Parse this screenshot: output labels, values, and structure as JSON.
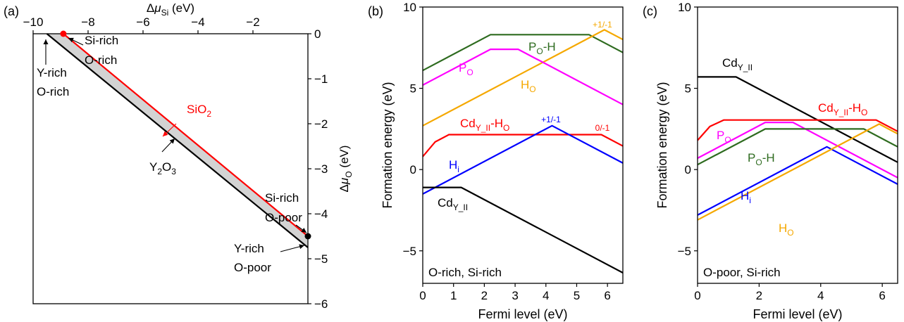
{
  "colors": {
    "text": "#000000",
    "red": "#ff0000",
    "blue": "#0000ff",
    "black": "#000000",
    "green": "#2e6b1f",
    "magenta": "#ff00ff",
    "orange": "#f5a800",
    "gray_fill": "#d3d3d3"
  },
  "chart_data": [
    {
      "id": "a",
      "panel_label": "(a)",
      "type": "line",
      "xlabel": "Δμ_Si (eV)",
      "ylabel": "Δμ_O (eV)",
      "xlim": [
        -10,
        0
      ],
      "ylim": [
        -6,
        0
      ],
      "xticks": [
        -10,
        -8,
        -6,
        -4,
        -2
      ],
      "yticks": [
        0,
        -1,
        -2,
        -3,
        -4,
        -5,
        -6
      ],
      "xtick_labels": [
        "−10",
        "−8",
        "−6",
        "−4",
        "−2"
      ],
      "ytick_labels": [
        "0",
        "−1",
        "−2",
        "−3",
        "−4",
        "−5",
        "−6"
      ],
      "axis_positions": {
        "x": "top",
        "y": "right"
      },
      "series": [
        {
          "name": "SiO2",
          "color": "red",
          "points": [
            [
              -8.9,
              0
            ],
            [
              0,
              -4.5
            ]
          ]
        },
        {
          "name": "Y2O3",
          "color": "black",
          "points": [
            [
              -9.5,
              0
            ],
            [
              0,
              -4.75
            ]
          ]
        }
      ],
      "shaded_region": [
        [
          -9.5,
          0
        ],
        [
          -8.9,
          0
        ],
        [
          0,
          -4.5
        ],
        [
          0,
          -4.75
        ]
      ],
      "markers": [
        {
          "x": -8.9,
          "y": 0,
          "color": "red"
        },
        {
          "x": 0,
          "y": -4.5,
          "color": "black"
        }
      ],
      "annotations": [
        {
          "lines": [
            "Si-rich",
            "O-rich"
          ]
        },
        {
          "lines": [
            "Y-rich",
            "O-rich"
          ]
        },
        {
          "lines": [
            "Si-rich",
            "O-poor"
          ]
        },
        {
          "lines": [
            "Y-rich",
            "O-poor"
          ]
        },
        {
          "label": "SiO₂",
          "color": "red"
        },
        {
          "label": "Y₂O₃",
          "color": "black"
        }
      ]
    },
    {
      "id": "b",
      "panel_label": "(b)",
      "type": "line",
      "xlabel": "Fermi level (eV)",
      "ylabel": "Formation energy (eV)",
      "xlim": [
        0,
        6.5
      ],
      "ylim": [
        -7,
        10
      ],
      "xticks": [
        0,
        1,
        2,
        3,
        4,
        5,
        6
      ],
      "yticks": [
        -5,
        0,
        5,
        10
      ],
      "xtick_labels": [
        "0",
        "1",
        "2",
        "3",
        "4",
        "5",
        "6"
      ],
      "ytick_labels": [
        "−5",
        "0",
        "5",
        "10"
      ],
      "corner_text": "O-rich, Si-rich",
      "series": [
        {
          "name": "P_O-H",
          "color": "green",
          "points": [
            [
              0,
              6.1
            ],
            [
              2.2,
              8.3
            ],
            [
              5.4,
              8.3
            ],
            [
              6.5,
              7.2
            ]
          ]
        },
        {
          "name": "H_O",
          "color": "orange",
          "points": [
            [
              0,
              2.7
            ],
            [
              5.9,
              8.6
            ],
            [
              6.5,
              8.0
            ]
          ]
        },
        {
          "name": "P_O",
          "color": "magenta",
          "points": [
            [
              0,
              5.2
            ],
            [
              2.2,
              7.4
            ],
            [
              3.1,
              7.4
            ],
            [
              6.5,
              4.0
            ]
          ]
        },
        {
          "name": "Cd_Y_II-H_O",
          "color": "red",
          "points": [
            [
              0,
              0.8
            ],
            [
              0.4,
              1.7
            ],
            [
              0.85,
              2.15
            ],
            [
              5.8,
              2.15
            ],
            [
              6.5,
              1.45
            ]
          ]
        },
        {
          "name": "H_i",
          "color": "blue",
          "points": [
            [
              0,
              -1.5
            ],
            [
              4.2,
              2.7
            ],
            [
              6.5,
              0.4
            ]
          ]
        },
        {
          "name": "Cd_Y_II",
          "color": "black",
          "points": [
            [
              0,
              -1.1
            ],
            [
              1.25,
              -1.1
            ],
            [
              6.5,
              -6.35
            ]
          ]
        }
      ],
      "series_labels": [
        {
          "base": "P",
          "sub": "O",
          "suffix": "-H",
          "color": "green"
        },
        {
          "base": "H",
          "sub": "O",
          "suffix": "",
          "color": "orange"
        },
        {
          "base": "P",
          "sub": "O",
          "suffix": "",
          "color": "magenta"
        },
        {
          "base": "Cd",
          "sub": "Y_II",
          "suffix": "-H",
          "sub2": "O",
          "color": "red"
        },
        {
          "base": "H",
          "sub": "i",
          "suffix": "",
          "color": "blue"
        },
        {
          "base": "Cd",
          "sub": "Y_II",
          "suffix": "",
          "color": "black"
        }
      ],
      "transition_labels": [
        {
          "text": "+1/-1",
          "color": "orange"
        },
        {
          "text": "+1/-1",
          "color": "blue"
        },
        {
          "text": "0/-1",
          "color": "red"
        }
      ]
    },
    {
      "id": "c",
      "panel_label": "(c)",
      "type": "line",
      "xlabel": "Fermi level (eV)",
      "ylabel": "Formation energy (eV)",
      "xlim": [
        0,
        6.5
      ],
      "ylim": [
        -7,
        10
      ],
      "xticks": [
        0,
        2,
        4,
        6
      ],
      "yticks": [
        -5,
        0,
        5,
        10
      ],
      "xtick_labels": [
        "0",
        "2",
        "4",
        "6"
      ],
      "ytick_labels": [
        "−5",
        "0",
        "5",
        "10"
      ],
      "corner_text": "O-poor, Si-rich",
      "series": [
        {
          "name": "Cd_Y_II",
          "color": "black",
          "points": [
            [
              0,
              5.7
            ],
            [
              1.25,
              5.7
            ],
            [
              6.5,
              0.45
            ]
          ]
        },
        {
          "name": "Cd_Y_II-H_O",
          "color": "red",
          "points": [
            [
              0,
              1.8
            ],
            [
              0.4,
              2.65
            ],
            [
              0.85,
              3.05
            ],
            [
              5.8,
              3.05
            ],
            [
              6.5,
              2.35
            ]
          ]
        },
        {
          "name": "P_O",
          "color": "magenta",
          "points": [
            [
              0,
              0.7
            ],
            [
              2.2,
              2.9
            ],
            [
              3.1,
              2.9
            ],
            [
              6.5,
              -0.5
            ]
          ]
        },
        {
          "name": "P_O-H",
          "color": "green",
          "points": [
            [
              0,
              0.3
            ],
            [
              2.2,
              2.5
            ],
            [
              5.4,
              2.5
            ],
            [
              6.5,
              1.4
            ]
          ]
        },
        {
          "name": "H_i",
          "color": "blue",
          "points": [
            [
              0,
              -2.8
            ],
            [
              4.2,
              1.4
            ],
            [
              6.5,
              -0.9
            ]
          ]
        },
        {
          "name": "H_O",
          "color": "orange",
          "points": [
            [
              0,
              -3.1
            ],
            [
              5.9,
              2.8
            ],
            [
              6.5,
              2.2
            ]
          ]
        }
      ],
      "series_labels": [
        {
          "base": "Cd",
          "sub": "Y_II",
          "suffix": "",
          "color": "black"
        },
        {
          "base": "Cd",
          "sub": "Y_II",
          "suffix": "-H",
          "sub2": "O",
          "color": "red"
        },
        {
          "base": "P",
          "sub": "O",
          "suffix": "",
          "color": "magenta"
        },
        {
          "base": "P",
          "sub": "O",
          "suffix": "-H",
          "color": "green"
        },
        {
          "base": "H",
          "sub": "i",
          "suffix": "",
          "color": "blue"
        },
        {
          "base": "H",
          "sub": "O",
          "suffix": "",
          "color": "orange"
        }
      ]
    }
  ]
}
